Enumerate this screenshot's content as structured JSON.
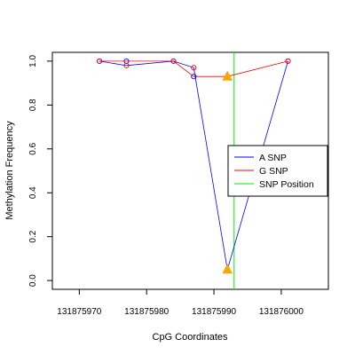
{
  "chart_data": {
    "type": "line",
    "title": "",
    "xlabel": "CpG Coordinates",
    "ylabel": "Methylation Frequency",
    "xlim": [
      131875966,
      131876007
    ],
    "ylim": [
      -0.04,
      1.04
    ],
    "x_ticks": [
      131875970,
      131875980,
      131875990,
      131876000
    ],
    "y_ticks": [
      0.0,
      0.2,
      0.4,
      0.6,
      0.8,
      1.0
    ],
    "x_tick_labels": [
      "131875970",
      "131875980",
      "131875990",
      "131876000"
    ],
    "y_tick_labels": [
      "0.0",
      "0.2",
      "0.4",
      "0.6",
      "0.8",
      "1.0"
    ],
    "legend_position": "right",
    "series": [
      {
        "name": "A SNP",
        "color": "#0000ff",
        "x": [
          131875973,
          131875977,
          131875984,
          131875987,
          131875992,
          131876001
        ],
        "y": [
          1.0,
          0.98,
          1.0,
          0.97,
          0.05,
          1.0
        ],
        "marker_color": "#ff0000"
      },
      {
        "name": "G SNP",
        "color": "#ff0000",
        "x": [
          131875973,
          131875977,
          131875984,
          131875987,
          131875992,
          131876001
        ],
        "y": [
          1.0,
          1.0,
          1.0,
          0.93,
          0.93,
          1.0
        ],
        "marker_color": "#0000ff"
      }
    ],
    "snp_position": {
      "name": "SNP Position",
      "x": 131875993,
      "color": "#00ee00"
    },
    "snp_markers": {
      "color": "#ffa500",
      "points": [
        {
          "x": 131875992,
          "y": 0.93
        },
        {
          "x": 131875992,
          "y": 0.05
        }
      ]
    }
  }
}
